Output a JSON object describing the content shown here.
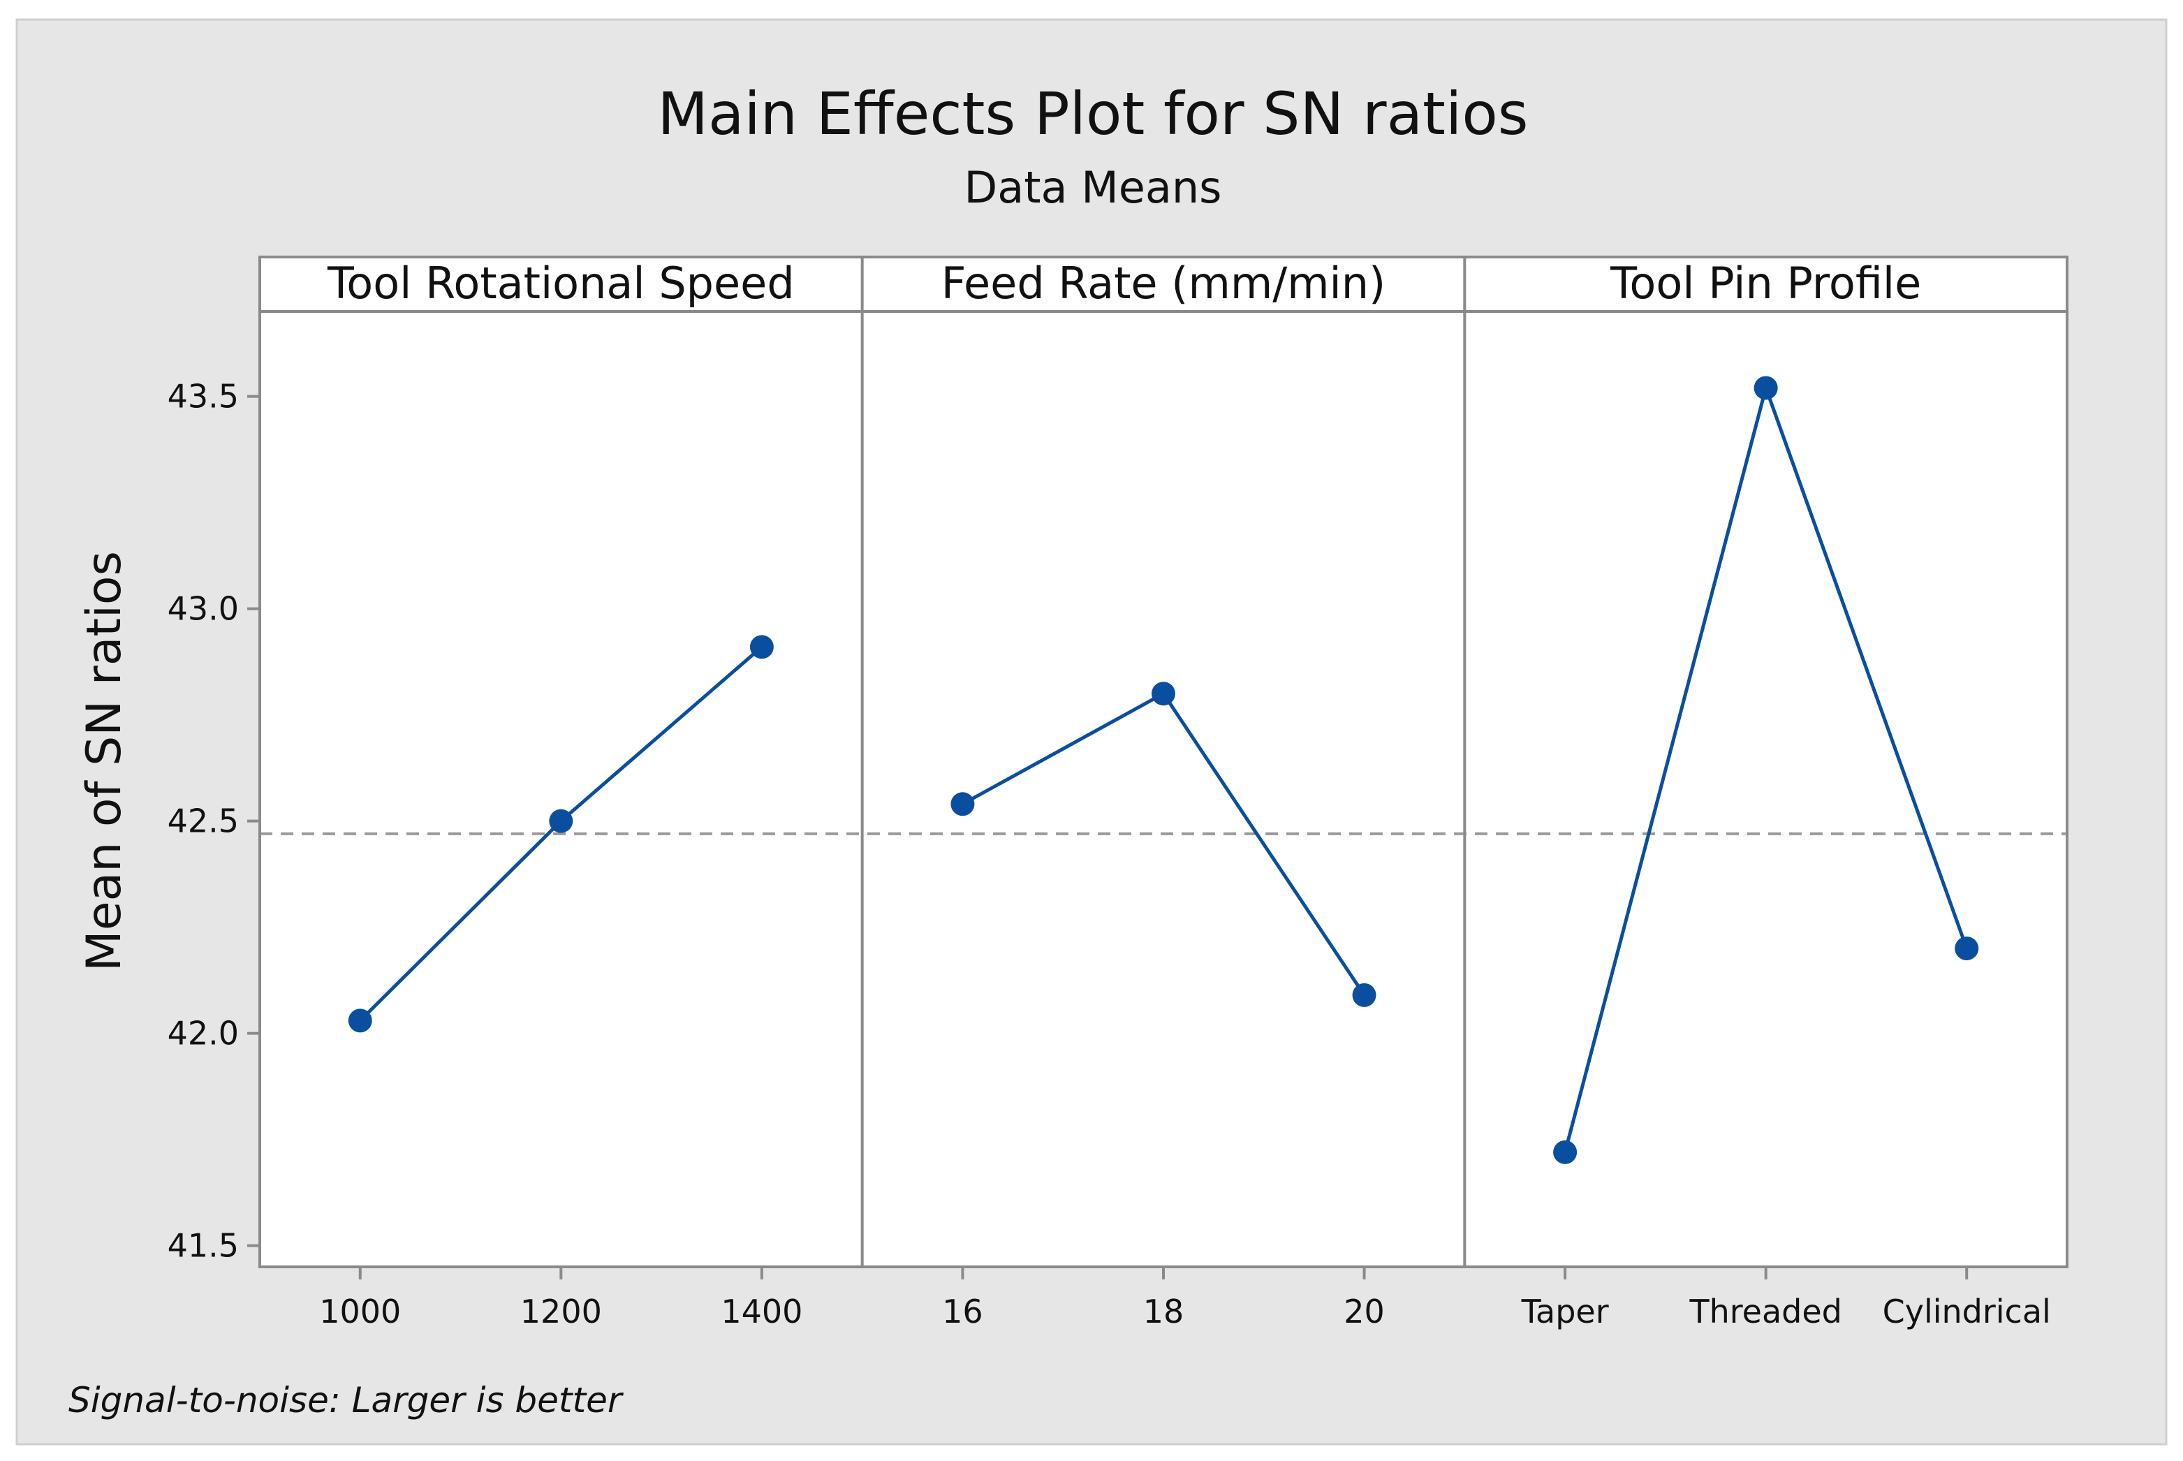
{
  "chart_data": {
    "type": "line",
    "title": "Main Effects Plot for SN ratios",
    "subtitle": "Data Means",
    "ylabel": "Mean of SN ratios",
    "footnote": "Signal-to-noise: Larger is better",
    "ylim": [
      41.45,
      43.7
    ],
    "yticks": [
      "41.5",
      "42.0",
      "42.5",
      "43.0",
      "43.5"
    ],
    "ytick_values": [
      41.5,
      42.0,
      42.5,
      43.0,
      43.5
    ],
    "reference_mean": 42.47,
    "colors": {
      "series": "#0a4f9f",
      "reference": "#999999",
      "frame": "#8a8a8a",
      "background": "#e6e6e6"
    },
    "panels": [
      {
        "label": "Tool Rotational Speed",
        "categories": [
          "1000",
          "1200",
          "1400"
        ],
        "values": [
          42.03,
          42.5,
          42.91
        ]
      },
      {
        "label": "Feed Rate (mm/min)",
        "categories": [
          "16",
          "18",
          "20"
        ],
        "values": [
          42.54,
          42.8,
          42.09
        ]
      },
      {
        "label": "Tool Pin Profile",
        "categories": [
          "Taper",
          "Threaded",
          "Cylindrical"
        ],
        "values": [
          41.72,
          43.52,
          42.2
        ]
      }
    ]
  }
}
